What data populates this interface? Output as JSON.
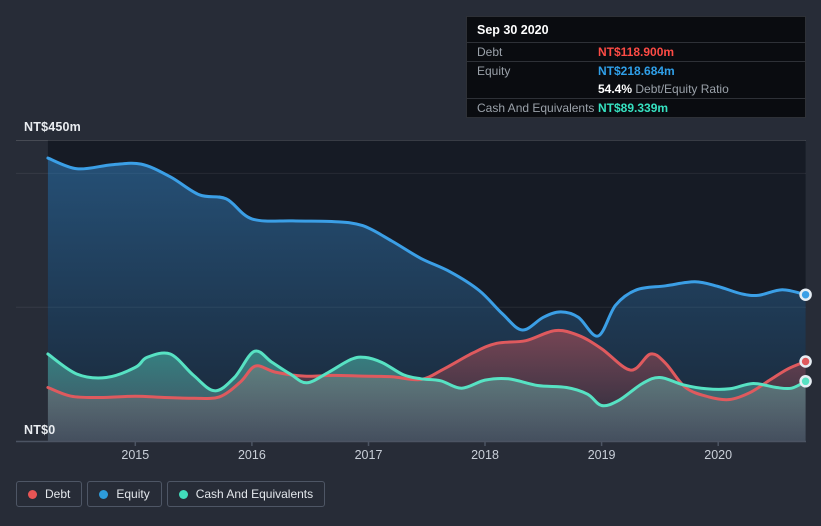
{
  "page": {
    "background": "#272c37"
  },
  "y_axis": {
    "top_label": "NT$450m",
    "bottom_label": "NT$0"
  },
  "tooltip": {
    "date": "Sep 30 2020",
    "rows": [
      {
        "label": "Debt",
        "value": "NT$118.900m",
        "color": "#fd4b45"
      },
      {
        "label": "Equity",
        "value": "NT$218.684m",
        "color": "#2f9fe8"
      }
    ],
    "ratio": {
      "value": "54.4%",
      "label": "Debt/Equity Ratio"
    },
    "cash_row": {
      "label": "Cash And Equivalents",
      "value": "NT$89.339m",
      "color": "#36e2c1"
    }
  },
  "legend": {
    "items": [
      {
        "label": "Debt",
        "color": "#e85555"
      },
      {
        "label": "Equity",
        "color": "#2d9cdb"
      },
      {
        "label": "Cash And Equivalents",
        "color": "#41dcbb"
      }
    ]
  },
  "chart_data": {
    "type": "area",
    "x_range": [
      2014.25,
      2020.75
    ],
    "ylim": [
      0,
      450
    ],
    "y_unit": "NT$m",
    "y_gridlines": [
      200,
      400
    ],
    "y_axis_labels": {
      "top": "NT$450m",
      "bottom": "NT$0"
    },
    "x_ticks": [
      {
        "label": "2015",
        "year": 2015
      },
      {
        "label": "2016",
        "year": 2016
      },
      {
        "label": "2017",
        "year": 2017
      },
      {
        "label": "2018",
        "year": 2018
      },
      {
        "label": "2019",
        "year": 2019
      },
      {
        "label": "2020",
        "year": 2020
      }
    ],
    "grid": true,
    "legend_position": "bottom-left",
    "plot_bg": "#161b25",
    "axis_color": "#4c5463",
    "marker_ring": "#e6edf3",
    "end_date": "Sep 30 2020",
    "series": [
      {
        "name": "Equity",
        "line_color": "#3b9fe6",
        "fill_from": "rgba(54,138,207,0.48)",
        "fill_to": "rgba(54,138,207,0.10)",
        "end_value": 218.684,
        "values": [
          [
            2014.25,
            423
          ],
          [
            2014.5,
            407
          ],
          [
            2014.8,
            413
          ],
          [
            2015.05,
            414
          ],
          [
            2015.3,
            395
          ],
          [
            2015.55,
            368
          ],
          [
            2015.78,
            362
          ],
          [
            2016.0,
            332
          ],
          [
            2016.35,
            329
          ],
          [
            2016.7,
            328
          ],
          [
            2016.95,
            322
          ],
          [
            2017.2,
            299
          ],
          [
            2017.45,
            273
          ],
          [
            2017.7,
            253
          ],
          [
            2017.95,
            225
          ],
          [
            2018.15,
            190
          ],
          [
            2018.32,
            166
          ],
          [
            2018.5,
            185
          ],
          [
            2018.65,
            193
          ],
          [
            2018.8,
            185
          ],
          [
            2018.97,
            157
          ],
          [
            2019.12,
            203
          ],
          [
            2019.3,
            226
          ],
          [
            2019.55,
            232
          ],
          [
            2019.8,
            238
          ],
          [
            2020.0,
            231
          ],
          [
            2020.2,
            220
          ],
          [
            2020.35,
            218
          ],
          [
            2020.55,
            226
          ],
          [
            2020.75,
            218.7
          ]
        ]
      },
      {
        "name": "Debt",
        "line_color": "#df5a5e",
        "fill_from": "rgba(224,86,88,0.45)",
        "fill_to": "rgba(224,86,88,0.05)",
        "end_value": 118.9,
        "values": [
          [
            2014.25,
            80
          ],
          [
            2014.45,
            67
          ],
          [
            2014.7,
            65
          ],
          [
            2015.0,
            67
          ],
          [
            2015.25,
            65
          ],
          [
            2015.5,
            64
          ],
          [
            2015.72,
            66
          ],
          [
            2015.9,
            88
          ],
          [
            2016.03,
            112
          ],
          [
            2016.2,
            103
          ],
          [
            2016.45,
            97
          ],
          [
            2016.7,
            98
          ],
          [
            2016.95,
            97
          ],
          [
            2017.2,
            96
          ],
          [
            2017.45,
            92
          ],
          [
            2017.65,
            108
          ],
          [
            2017.9,
            132
          ],
          [
            2018.1,
            146
          ],
          [
            2018.35,
            150
          ],
          [
            2018.6,
            165
          ],
          [
            2018.8,
            158
          ],
          [
            2019.0,
            138
          ],
          [
            2019.25,
            106
          ],
          [
            2019.42,
            130
          ],
          [
            2019.55,
            116
          ],
          [
            2019.72,
            80
          ],
          [
            2019.92,
            66
          ],
          [
            2020.1,
            62
          ],
          [
            2020.28,
            73
          ],
          [
            2020.45,
            92
          ],
          [
            2020.6,
            108
          ],
          [
            2020.75,
            118.9
          ]
        ]
      },
      {
        "name": "Cash And Equivalents",
        "line_color": "#57e2c3",
        "fill_from": "rgba(82,223,194,0.45)",
        "fill_to": "rgba(152,178,192,0.28)",
        "end_value": 89.339,
        "values": [
          [
            2014.25,
            130
          ],
          [
            2014.5,
            100
          ],
          [
            2014.75,
            95
          ],
          [
            2015.0,
            110
          ],
          [
            2015.1,
            125
          ],
          [
            2015.3,
            130
          ],
          [
            2015.5,
            98
          ],
          [
            2015.68,
            75
          ],
          [
            2015.85,
            95
          ],
          [
            2016.02,
            134
          ],
          [
            2016.17,
            118
          ],
          [
            2016.33,
            100
          ],
          [
            2016.47,
            87
          ],
          [
            2016.65,
            102
          ],
          [
            2016.85,
            122
          ],
          [
            2016.97,
            125
          ],
          [
            2017.12,
            117
          ],
          [
            2017.3,
            99
          ],
          [
            2017.45,
            93
          ],
          [
            2017.62,
            90
          ],
          [
            2017.8,
            79
          ],
          [
            2018.0,
            91
          ],
          [
            2018.2,
            93
          ],
          [
            2018.45,
            83
          ],
          [
            2018.7,
            80
          ],
          [
            2018.88,
            70
          ],
          [
            2019.0,
            53
          ],
          [
            2019.15,
            61
          ],
          [
            2019.35,
            86
          ],
          [
            2019.5,
            95
          ],
          [
            2019.7,
            84
          ],
          [
            2019.9,
            78
          ],
          [
            2020.1,
            78
          ],
          [
            2020.3,
            86
          ],
          [
            2020.5,
            80
          ],
          [
            2020.63,
            79
          ],
          [
            2020.75,
            89.3
          ]
        ]
      }
    ]
  }
}
